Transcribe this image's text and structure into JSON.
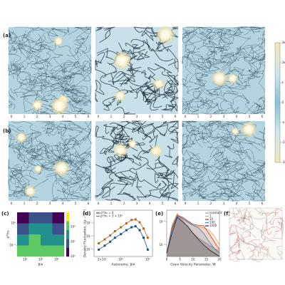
{
  "figure": {
    "panel_labels": [
      "(a)",
      "(b)",
      "(c)",
      "(d)",
      "(e)",
      "(f)"
    ],
    "field_ticks": [
      "0",
      "1",
      "2",
      "3",
      "4",
      "5",
      "6"
    ],
    "colorbar": {
      "clim": [
        -3,
        3
      ],
      "ticks": [
        {
          "value": 3,
          "label": "3κ"
        },
        {
          "value": 2,
          "label": "2κ"
        },
        {
          "value": 1,
          "label": "κ"
        },
        {
          "value": 0,
          "label": "0"
        },
        {
          "value": -1,
          "label": "-κ"
        },
        {
          "value": -2,
          "label": "-2κ"
        },
        {
          "value": -3,
          "label": "-3κ"
        }
      ],
      "colors": [
        "#f3e7b6",
        "#cfe6ee",
        "#8fc1d6",
        "#cfe6ee",
        "#f3e7b6"
      ]
    }
  },
  "chart_data": [
    {
      "type": "heatmap",
      "xlabel": "β/κ",
      "ylabel": "ρ*/n₀",
      "xscale": "log",
      "yscale": "log",
      "xlim": [
        0.3,
        300
      ],
      "ylim": [
        0.001,
        10
      ],
      "xticks": [
        {
          "value": 1,
          "label": "10⁰"
        },
        {
          "value": 10,
          "label": "10¹"
        },
        {
          "value": 100,
          "label": "10²"
        }
      ],
      "yticks": [
        {
          "value": 0.01,
          "label": "10⁻²"
        },
        {
          "value": 1,
          "label": "10⁰"
        }
      ],
      "values": [
        [
          0.3,
          0.8,
          0.6,
          0.2
        ],
        [
          1,
          1.5,
          1.3,
          0.8
        ],
        [
          1.5,
          2,
          1.8,
          1.4
        ],
        [
          2,
          2.6,
          2.5,
          2
        ]
      ],
      "zlim": [
        0,
        3
      ],
      "zticks": [
        {
          "value": 0,
          "label": "10⁰"
        },
        {
          "value": 1,
          "label": "10¹"
        },
        {
          "value": 2,
          "label": "10²"
        }
      ]
    },
    {
      "type": "line",
      "xlabel": "Autonomy, β/κ",
      "ylabel": "Density Fluctuation, ⟨(ρ − ρ̄)²⟩",
      "xscale": "log",
      "yscale": "log",
      "xlim": [
        10,
        1500
      ],
      "ylim": [
        0.0003,
        1
      ],
      "xticks": [
        {
          "value": 20,
          "label": "2×10¹"
        },
        {
          "value": 100,
          "label": "10²"
        },
        {
          "value": 1000,
          "label": "10³"
        }
      ],
      "yticks": [
        {
          "value": 0.001,
          "label": "10⁻³"
        },
        {
          "value": 0.01,
          "label": "10⁻²"
        },
        {
          "value": 0.1,
          "label": "10⁻¹"
        }
      ],
      "x": [
        15,
        25,
        40,
        60,
        100,
        160,
        250,
        350,
        500,
        700,
        1000
      ],
      "series": [
        {
          "name": "ρ*/n₀ = 0",
          "color": "#1f4e79",
          "values": [
            0.001,
            0.002,
            0.004,
            0.008,
            0.015,
            0.03,
            0.05,
            0.06,
            0.03,
            0.008,
            0.001
          ]
        },
        {
          "name": "ρ*/n₀ = 3 × 10⁴",
          "color": "#b5651d",
          "values": [
            0.003,
            0.006,
            0.012,
            0.025,
            0.05,
            0.1,
            0.18,
            0.2,
            0.12,
            0.04,
            0.008
          ]
        }
      ],
      "legend": "upper-left"
    },
    {
      "type": "area",
      "xlabel": "Grain Velocity Parameter, W",
      "yscale": "log",
      "xlim": [
        0,
        20
      ],
      "ylim": [
        0.0001,
        1
      ],
      "xticks": [
        0,
        5,
        10,
        15,
        20
      ],
      "yticks": [
        {
          "value": 0.001,
          "label": "10⁻³"
        },
        {
          "value": 0.1,
          "label": "10⁻¹"
        }
      ],
      "x": [
        0,
        2,
        4,
        6,
        8,
        10,
        12,
        14,
        16,
        18,
        20
      ],
      "series": [
        {
          "name": "constant",
          "color": "#9a9a9a",
          "values": [
            0.0002,
            0.05,
            0.5,
            0.15,
            0.03,
            0.01,
            0.004,
            0.002,
            0.001,
            0.0005,
            0.0003
          ]
        },
        {
          "name": "1",
          "color": "#e6a04a",
          "values": [
            0.0002,
            0.04,
            0.4,
            0.2,
            0.08,
            0.05,
            0.04,
            0.03,
            0.02,
            0.006,
            0.001
          ]
        },
        {
          "name": "10",
          "color": "#c0392b",
          "values": [
            0.0002,
            0.03,
            0.35,
            0.25,
            0.12,
            0.06,
            0.05,
            0.045,
            0.01,
            0.002,
            0.0004
          ]
        },
        {
          "name": "100",
          "color": "#2e86c1",
          "values": [
            0.0002,
            0.02,
            0.3,
            0.2,
            0.1,
            0.05,
            0.03,
            0.01,
            0.002,
            0.0005,
            0.0002
          ]
        },
        {
          "name": "1000",
          "color": "#1b2631",
          "values": [
            0.0002,
            0.01,
            0.25,
            0.1,
            0.04,
            0.01,
            0.003,
            0.001,
            0.0004,
            0.0002,
            0.0001
          ]
        }
      ],
      "legend": "upper-right"
    }
  ]
}
